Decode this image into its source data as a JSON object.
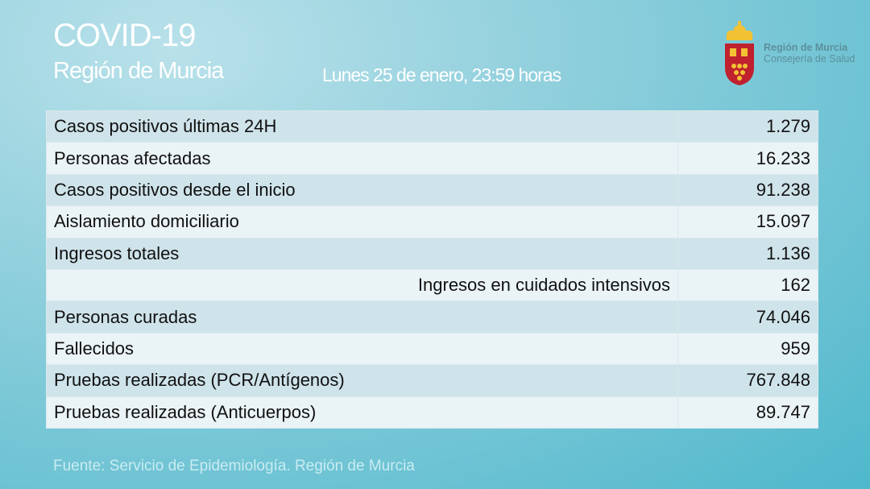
{
  "header": {
    "title": "COVID-19",
    "subtitle": "Región de Murcia",
    "date": "Lunes 25 de enero, 23:59 horas"
  },
  "logo": {
    "line1": "Región de Murcia",
    "line2": "Consejería de Salud",
    "icon": "coat-of-arms-icon"
  },
  "rows": [
    {
      "label": "Casos positivos últimas 24H",
      "value": "1.279"
    },
    {
      "label": "Personas afectadas",
      "value": "16.233"
    },
    {
      "label": "Casos positivos desde el inicio",
      "value": "91.238"
    },
    {
      "label": "Aislamiento domiciliario",
      "value": "15.097"
    },
    {
      "label": "Ingresos totales",
      "value": "1.136"
    },
    {
      "label": "Ingresos en cuidados intensivos",
      "value": "162"
    },
    {
      "label": "Personas curadas",
      "value": "74.046"
    },
    {
      "label": "Fallecidos",
      "value": "959"
    },
    {
      "label": "Pruebas realizadas (PCR/Antígenos)",
      "value": "767.848"
    },
    {
      "label": "Pruebas realizadas (Anticuerpos)",
      "value": "89.747"
    }
  ],
  "footer": {
    "source": "Fuente: Servicio de Epidemiología. Región de Murcia"
  }
}
